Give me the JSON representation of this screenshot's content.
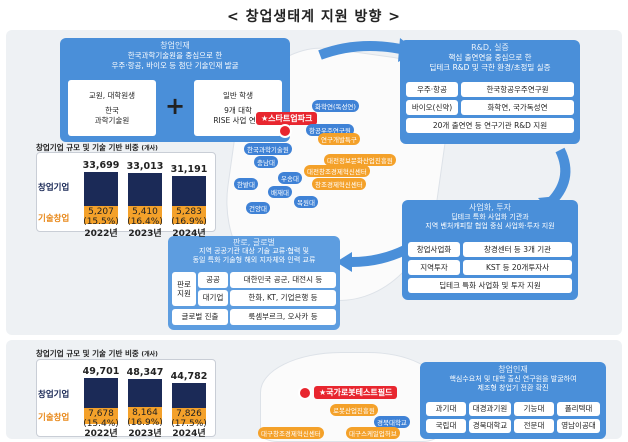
{
  "title": "< 창업생태계 지원 방향 >",
  "talent": {
    "header": "창업인재",
    "desc": "한국과학기술원을 중심으로 한\n우주·항공, 바이오 등 첨단 기술인재 발굴",
    "left_title": "교원, 대학원생",
    "left_value": "한국\n과학기술원",
    "plus": "+",
    "right_title": "일반 학생",
    "right_value": "9개 대학\nRISE 사업 연계"
  },
  "rnd": {
    "header": "R&D, 실증",
    "desc": "핵심 출연연을 중심으로 한\n딥테크 R&D 및 극한 환경/초정밀 실증",
    "r1c1": "우주·항공",
    "r1c2": "한국항공우주연구원",
    "r2c1": "바이오(신약)",
    "r2c2": "화학연, 국가독성연",
    "r3": "20개 출연연 등 연구기관 R&D 지원"
  },
  "biz": {
    "header": "사업화, 투자",
    "desc": "딥테크 특화 사업화 기관과\n지역 벤처캐피탈 협업 중심 사업화·투자 지원",
    "r1c1": "창업사업화",
    "r1c2": "창경센터 등 3개 기관",
    "r2c1": "지역투자",
    "r2c2": "KST 등 20개투자사",
    "r3": "딥테크 특화 사업화 및 투자 지원"
  },
  "global": {
    "header": "판로, 글로벌",
    "desc": "지역 공공기관 대상 기술 교류·협력 및\n동일 특화 기술형 해외 지자체와 인력 교류",
    "side": "판로\n지원",
    "r1c1": "공공",
    "r1c2": "대한민국 공군, 대전시 등",
    "r2c1": "대기업",
    "r2c2": "한화, KT, 기업은행 등",
    "r3c1": "글로벌 진출",
    "r3c2": "룩셈부르크, 오사카 등"
  },
  "map1": {
    "star": "★스타트업파크",
    "pins": [
      "화학연(독성연)",
      "항공우주연구원",
      "연구개발특구",
      "한국과학기술원",
      "충남대",
      "대전창조경제혁신센터",
      "대전정보문화산업진흥원",
      "한밭대",
      "우송대",
      "배재대",
      "건양대",
      "목원대",
      "창조경제혁신센터"
    ]
  },
  "chart_data": [
    {
      "type": "bar",
      "title": "창업기업 규모 및 기술 기반 비중",
      "unit": "(개사)",
      "categories": [
        "2022년",
        "2023년",
        "2024년"
      ],
      "series": [
        {
          "name": "창업기업",
          "values": [
            33699,
            33013,
            31191
          ]
        },
        {
          "name": "기술창업",
          "values": [
            5207,
            5410,
            5283
          ]
        }
      ],
      "shares": [
        "(15.5%)",
        "(16.4%)",
        "(16.9%)"
      ],
      "totals": [
        "33,699",
        "33,013",
        "31,191"
      ],
      "tech": [
        "5,207",
        "5,410",
        "5,283"
      ]
    },
    {
      "type": "bar",
      "title": "창업기업 규모 및 기술 기반 비중",
      "unit": "(개사)",
      "categories": [
        "2022년",
        "2023년",
        "2024년"
      ],
      "series": [
        {
          "name": "창업기업",
          "values": [
            49701,
            48347,
            44782
          ]
        },
        {
          "name": "기술창업",
          "values": [
            7678,
            8164,
            7826
          ]
        }
      ],
      "shares": [
        "(15.4%)",
        "(16.9%)",
        "(17.5%)"
      ],
      "totals": [
        "49,701",
        "48,347",
        "44,782"
      ],
      "tech": [
        "7,678",
        "8,164",
        "7,826"
      ]
    }
  ],
  "map2": {
    "star": "★국가로봇테스트필드",
    "pins": [
      "로봇산업진흥원",
      "경북대학교",
      "대구창조경제혁신센터",
      "대구스케일업허브"
    ]
  },
  "talent2": {
    "header": "창업인재",
    "desc": "핵심수요처 및 대학 출신 연구원을 발굴하여\n제조형 창업기 전환 확진",
    "cells": [
      "과기대",
      "대경과기원",
      "기능대",
      "폴리텍대",
      "국립대",
      "경북대학교",
      "전문대",
      "영남이공대"
    ]
  },
  "colors": {
    "blue": "#4a8fd9",
    "orange": "#f4a12a",
    "navy": "#1b2a57",
    "red": "#e8262f"
  }
}
